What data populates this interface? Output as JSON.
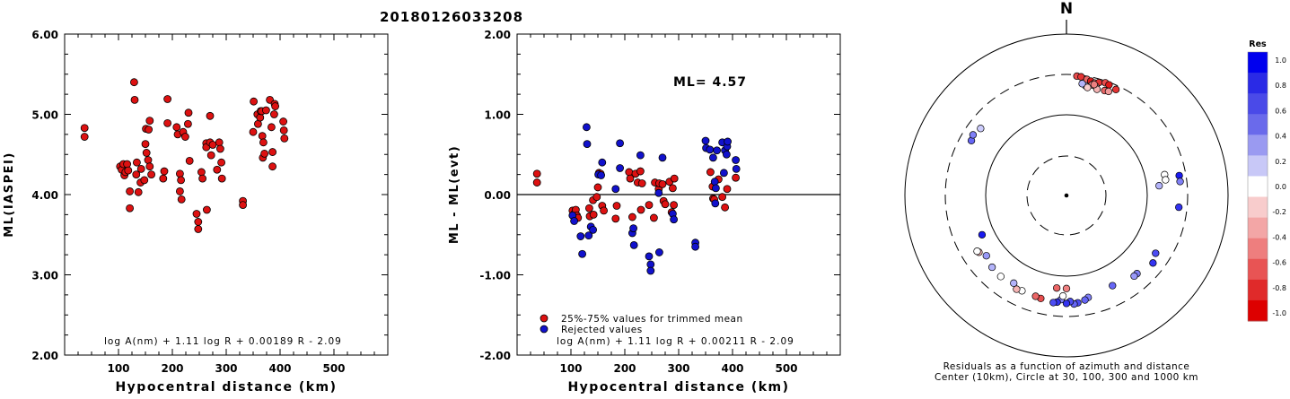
{
  "page_title": "20180126033208",
  "chart_data": [
    {
      "type": "scatter",
      "title": "",
      "xlabel": "Hypocentral distance (km)",
      "ylabel": "ML(IASPEI)",
      "xlim": [
        0,
        600
      ],
      "ylim": [
        2.0,
        6.0
      ],
      "x_ticks": [
        "100",
        "200",
        "300",
        "400",
        "500"
      ],
      "y_ticks": [
        "2.00",
        "3.00",
        "4.00",
        "5.00",
        "6.00"
      ],
      "formula": "log A(nm) + 1.11 log R + 0.00189 R - 2.09",
      "points_color": "#dd1111",
      "points": [
        [
          37,
          4.83
        ],
        [
          37,
          4.72
        ],
        [
          103,
          4.35
        ],
        [
          106,
          4.31
        ],
        [
          109,
          4.38
        ],
        [
          111,
          4.24
        ],
        [
          113,
          4.28
        ],
        [
          116,
          4.38
        ],
        [
          118,
          4.3
        ],
        [
          121,
          4.04
        ],
        [
          121,
          3.83
        ],
        [
          129,
          5.4
        ],
        [
          130,
          5.18
        ],
        [
          133,
          4.25
        ],
        [
          134,
          4.4
        ],
        [
          137,
          4.03
        ],
        [
          141,
          4.15
        ],
        [
          142,
          4.32
        ],
        [
          148,
          4.18
        ],
        [
          150,
          4.63
        ],
        [
          151,
          4.82
        ],
        [
          152,
          4.52
        ],
        [
          155,
          4.43
        ],
        [
          156,
          4.81
        ],
        [
          158,
          4.92
        ],
        [
          158,
          4.35
        ],
        [
          161,
          4.25
        ],
        [
          183,
          4.2
        ],
        [
          185,
          4.29
        ],
        [
          191,
          5.19
        ],
        [
          191,
          4.89
        ],
        [
          208,
          4.84
        ],
        [
          210,
          4.75
        ],
        [
          214,
          4.26
        ],
        [
          214,
          4.04
        ],
        [
          216,
          4.18
        ],
        [
          217,
          3.94
        ],
        [
          220,
          4.78
        ],
        [
          224,
          4.72
        ],
        [
          229,
          4.88
        ],
        [
          230,
          5.02
        ],
        [
          232,
          4.42
        ],
        [
          245,
          3.76
        ],
        [
          248,
          3.66
        ],
        [
          248,
          3.57
        ],
        [
          254,
          4.28
        ],
        [
          256,
          4.2
        ],
        [
          263,
          4.64
        ],
        [
          263,
          4.59
        ],
        [
          264,
          3.81
        ],
        [
          270,
          4.98
        ],
        [
          270,
          4.65
        ],
        [
          272,
          4.49
        ],
        [
          275,
          4.62
        ],
        [
          283,
          4.31
        ],
        [
          287,
          4.65
        ],
        [
          289,
          4.57
        ],
        [
          291,
          4.4
        ],
        [
          292,
          4.2
        ],
        [
          331,
          3.92
        ],
        [
          331,
          3.87
        ],
        [
          350,
          4.78
        ],
        [
          351,
          5.16
        ],
        [
          358,
          5.0
        ],
        [
          359,
          4.88
        ],
        [
          363,
          4.96
        ],
        [
          364,
          5.04
        ],
        [
          366,
          5.04
        ],
        [
          367,
          4.73
        ],
        [
          368,
          4.46
        ],
        [
          369,
          4.65
        ],
        [
          371,
          4.51
        ],
        [
          374,
          5.05
        ],
        [
          381,
          5.18
        ],
        [
          384,
          4.84
        ],
        [
          386,
          4.35
        ],
        [
          386,
          4.53
        ],
        [
          389,
          5.0
        ],
        [
          390,
          5.13
        ],
        [
          391,
          5.1
        ],
        [
          406,
          4.91
        ],
        [
          407,
          4.8
        ],
        [
          408,
          4.7
        ]
      ]
    },
    {
      "type": "scatter",
      "title": "",
      "xlabel": "Hypocentral distance (km)",
      "ylabel": "ML - ML(evt)",
      "xlim": [
        0,
        600
      ],
      "ylim": [
        -2.0,
        2.0
      ],
      "x_ticks": [
        "100",
        "200",
        "300",
        "400",
        "500"
      ],
      "y_ticks": [
        "-2.00",
        "-1.00",
        "0.00",
        "1.00",
        "2.00"
      ],
      "annotation": "ML= 4.57",
      "formula": "log A(nm) + 1.11 log R + 0.00211 R - 2.09",
      "legend": [
        {
          "label": "25%-75% values for trimmed mean",
          "color": "#dd1111"
        },
        {
          "label": "Rejected values",
          "color": "#1111cc"
        }
      ],
      "series": [
        {
          "name": "25%-75% values for trimmed mean",
          "color": "#dd1111",
          "points": [
            [
              37,
              0.26
            ],
            [
              37,
              0.15
            ],
            [
              103,
              -0.2
            ],
            [
              106,
              -0.24
            ],
            [
              109,
              -0.19
            ],
            [
              111,
              -0.26
            ],
            [
              113,
              -0.29
            ],
            [
              134,
              -0.17
            ],
            [
              135,
              -0.27
            ],
            [
              141,
              -0.07
            ],
            [
              142,
              -0.25
            ],
            [
              148,
              -0.03
            ],
            [
              150,
              0.09
            ],
            [
              152,
              0.27
            ],
            [
              155,
              0.26
            ],
            [
              158,
              -0.14
            ],
            [
              161,
              -0.2
            ],
            [
              183,
              -0.3
            ],
            [
              185,
              -0.14
            ],
            [
              208,
              0.28
            ],
            [
              210,
              0.2
            ],
            [
              214,
              -0.28
            ],
            [
              220,
              0.26
            ],
            [
              224,
              0.15
            ],
            [
              229,
              0.29
            ],
            [
              230,
              -0.19
            ],
            [
              232,
              0.14
            ],
            [
              245,
              -0.13
            ],
            [
              254,
              -0.29
            ],
            [
              256,
              0.15
            ],
            [
              263,
              0.07
            ],
            [
              264,
              0.14
            ],
            [
              270,
              0.13
            ],
            [
              272,
              -0.08
            ],
            [
              275,
              -0.12
            ],
            [
              283,
              0.16
            ],
            [
              287,
              -0.22
            ],
            [
              289,
              0.08
            ],
            [
              291,
              -0.13
            ],
            [
              292,
              0.2
            ],
            [
              359,
              0.28
            ],
            [
              363,
              0.1
            ],
            [
              364,
              -0.05
            ],
            [
              366,
              -0.06
            ],
            [
              374,
              0.19
            ],
            [
              381,
              -0.03
            ],
            [
              386,
              -0.16
            ],
            [
              390,
              0.07
            ],
            [
              406,
              0.21
            ]
          ]
        },
        {
          "name": "Rejected values",
          "color": "#1111cc",
          "points": [
            [
              103,
              -0.26
            ],
            [
              106,
              -0.33
            ],
            [
              118,
              -0.52
            ],
            [
              121,
              -0.74
            ],
            [
              129,
              0.84
            ],
            [
              130,
              0.63
            ],
            [
              133,
              -0.51
            ],
            [
              137,
              -0.4
            ],
            [
              141,
              -0.44
            ],
            [
              151,
              0.25
            ],
            [
              156,
              0.24
            ],
            [
              158,
              0.4
            ],
            [
              183,
              0.07
            ],
            [
              191,
              0.64
            ],
            [
              191,
              0.33
            ],
            [
              214,
              -0.48
            ],
            [
              216,
              -0.42
            ],
            [
              217,
              -0.63
            ],
            [
              229,
              0.49
            ],
            [
              245,
              -0.77
            ],
            [
              248,
              -0.87
            ],
            [
              248,
              -0.95
            ],
            [
              263,
              0.02
            ],
            [
              264,
              -0.72
            ],
            [
              270,
              0.46
            ],
            [
              289,
              -0.24
            ],
            [
              291,
              -0.31
            ],
            [
              331,
              -0.6
            ],
            [
              331,
              -0.65
            ],
            [
              350,
              0.67
            ],
            [
              351,
              0.58
            ],
            [
              358,
              0.56
            ],
            [
              364,
              0.46
            ],
            [
              367,
              0.16
            ],
            [
              368,
              -0.11
            ],
            [
              369,
              0.08
            ],
            [
              371,
              0.55
            ],
            [
              381,
              0.65
            ],
            [
              384,
              0.27
            ],
            [
              386,
              0.55
            ],
            [
              389,
              0.5
            ],
            [
              390,
              0.6
            ],
            [
              391,
              0.66
            ],
            [
              406,
              0.43
            ],
            [
              407,
              0.32
            ]
          ]
        }
      ]
    },
    {
      "type": "scatter",
      "subtype": "polar residual map",
      "north_label": "N",
      "caption_line1": "Residuals as a function of azimuth and distance",
      "caption_line2": "Center (10km), Circle at 30, 100, 300 and 1000 km",
      "colorbar_title": "Res",
      "colorbar_ticks": [
        "1.0",
        "0.8",
        "0.6",
        "0.4",
        "0.2",
        "0.0",
        "-0.2",
        "-0.4",
        "-0.6",
        "-0.8",
        "-1.0"
      ],
      "colorbar_colors": [
        "#0000ee",
        "#2a2ae6",
        "#4a4ae8",
        "#6a6aeb",
        "#9a9af1",
        "#c8c8f7",
        "#ffffff",
        "#f8cccc",
        "#f3a6a6",
        "#ee7e7e",
        "#e85454",
        "#e02a2a",
        "#dd0000"
      ],
      "stations": [
        {
          "az": 5,
          "dist": 290,
          "res": -0.7
        },
        {
          "az": 7,
          "dist": 288,
          "res": -0.8
        },
        {
          "az": 10,
          "dist": 275,
          "res": -0.6
        },
        {
          "az": 12,
          "dist": 268,
          "res": -0.9
        },
        {
          "az": 14,
          "dist": 260,
          "res": -0.5
        },
        {
          "az": 16,
          "dist": 272,
          "res": -0.8
        },
        {
          "az": 19,
          "dist": 285,
          "res": -0.7
        },
        {
          "az": 21,
          "dist": 280,
          "res": -0.9
        },
        {
          "az": 13,
          "dist": 245,
          "res": -0.4
        },
        {
          "az": 15,
          "dist": 240,
          "res": -0.3
        },
        {
          "az": 10,
          "dist": 230,
          "res": 0.2
        },
        {
          "az": 8,
          "dist": 240,
          "res": 0.3
        },
        {
          "az": 11,
          "dist": 222,
          "res": -0.2
        },
        {
          "az": 16,
          "dist": 225,
          "res": -0.3
        },
        {
          "az": 20,
          "dist": 232,
          "res": -0.6
        },
        {
          "az": 22,
          "dist": 236,
          "res": -0.4
        },
        {
          "az": 25,
          "dist": 268,
          "res": -0.8
        },
        {
          "az": 14,
          "dist": 250,
          "res": -0.5
        },
        {
          "az": 84,
          "dist": 140,
          "res": 0.3
        },
        {
          "az": 78,
          "dist": 170,
          "res": 0.0
        },
        {
          "az": 81,
          "dist": 170,
          "res": 0.0
        },
        {
          "az": 80,
          "dist": 250,
          "res": 0.9
        },
        {
          "az": 83,
          "dist": 250,
          "res": 0.5
        },
        {
          "az": 96,
          "dist": 240,
          "res": 0.8
        },
        {
          "az": 123,
          "dist": 200,
          "res": 0.7
        },
        {
          "az": 128,
          "dist": 220,
          "res": 0.8
        },
        {
          "az": 138,
          "dist": 195,
          "res": 0.5
        },
        {
          "az": 140,
          "dist": 195,
          "res": 0.4
        },
        {
          "az": 153,
          "dist": 175,
          "res": 0.6
        },
        {
          "az": 168,
          "dist": 190,
          "res": 0.5
        },
        {
          "az": 170,
          "dist": 200,
          "res": 0.6
        },
        {
          "az": 174,
          "dist": 210,
          "res": 0.7
        },
        {
          "az": 176,
          "dist": 215,
          "res": 0.6
        },
        {
          "az": 178,
          "dist": 200,
          "res": 0.7
        },
        {
          "az": 180,
          "dist": 210,
          "res": 0.8
        },
        {
          "az": 183,
          "dist": 190,
          "res": 0.5
        },
        {
          "az": 185,
          "dist": 205,
          "res": 0.8
        },
        {
          "az": 187,
          "dist": 210,
          "res": 0.7
        },
        {
          "az": 182,
          "dist": 172,
          "res": 0.0
        },
        {
          "az": 180,
          "dist": 140,
          "res": -0.5
        },
        {
          "az": 186,
          "dist": 140,
          "res": -0.6
        },
        {
          "az": 194,
          "dist": 200,
          "res": -0.7
        },
        {
          "az": 197,
          "dist": 196,
          "res": -0.6
        },
        {
          "az": 205,
          "dist": 195,
          "res": 0.0
        },
        {
          "az": 208,
          "dist": 200,
          "res": -0.3
        },
        {
          "az": 211,
          "dist": 180,
          "res": 0.3
        },
        {
          "az": 219,
          "dist": 190,
          "res": 0.0
        },
        {
          "az": 226,
          "dist": 185,
          "res": 0.3
        },
        {
          "az": 233,
          "dist": 170,
          "res": 0.4
        },
        {
          "az": 237,
          "dist": 190,
          "res": -0.3
        },
        {
          "az": 238,
          "dist": 195,
          "res": 0.0
        },
        {
          "az": 245,
          "dist": 140,
          "res": 0.9
        },
        {
          "az": 300,
          "dist": 220,
          "res": 0.6
        },
        {
          "az": 303,
          "dist": 230,
          "res": 0.5
        },
        {
          "az": 308,
          "dist": 215,
          "res": 0.2
        }
      ]
    }
  ]
}
